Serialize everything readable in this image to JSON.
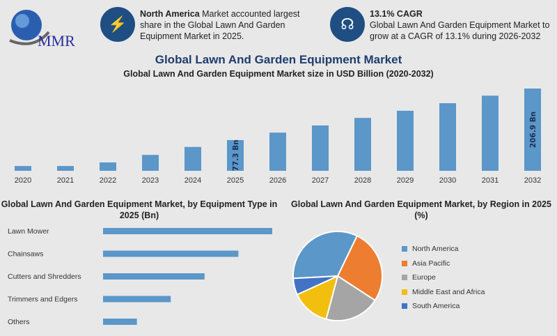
{
  "logo": {
    "text": "MMR"
  },
  "info1": {
    "icon": "lightning-icon",
    "bold": "North America",
    "text": " Market accounted largest share in the Global Lawn And Garden Equipment Market in 2025."
  },
  "info2": {
    "icon": "growth-icon",
    "bold": "13.1% CAGR",
    "text": "Global Lawn And Garden Equipment Market to grow at a CAGR of 13.1% during 2026-2032"
  },
  "colors": {
    "bar": "#5b97c9",
    "brand": "#1f4e82"
  },
  "chart_data": [
    {
      "type": "bar",
      "title": "Global Lawn And Garden Equipment Market",
      "subtitle": "Global Lawn And Garden Equipment Market size in USD Billion (2020-2032)",
      "categories": [
        "2020",
        "2021",
        "2022",
        "2023",
        "2024",
        "2025",
        "2026",
        "2027",
        "2028",
        "2029",
        "2030",
        "2031",
        "2032"
      ],
      "values": [
        12,
        12,
        21,
        40,
        60,
        77.3,
        96,
        114,
        133,
        151,
        170,
        189,
        206.9
      ],
      "data_labels": {
        "2025": "77.3 Bn",
        "2032": "206.9 Bn"
      },
      "grid": false
    },
    {
      "type": "bar",
      "orientation": "horizontal",
      "title": "Global Lawn And Garden Equipment Market, by Equipment Type in 2025 (Bn)",
      "categories": [
        "Lawn Mower",
        "Chainsaws",
        "Cutters and Shredders",
        "Trimmers and Edgers",
        "Others"
      ],
      "values_relative": [
        1.0,
        0.8,
        0.6,
        0.4,
        0.2
      ]
    },
    {
      "type": "pie",
      "title": "Global Lawn And Garden Equipment Market, by Region in 2025 (%)",
      "legend_position": "right",
      "slices": [
        {
          "name": "North America",
          "value": 33,
          "color": "#5b97c9"
        },
        {
          "name": "Asia Pacific",
          "value": 27,
          "color": "#ed7d31"
        },
        {
          "name": "Europe",
          "value": 20,
          "color": "#a5a5a5"
        },
        {
          "name": "Middle East and Africa",
          "value": 14,
          "color": "#f2bf0e"
        },
        {
          "name": "South America",
          "value": 6,
          "color": "#4472c4"
        }
      ]
    }
  ]
}
